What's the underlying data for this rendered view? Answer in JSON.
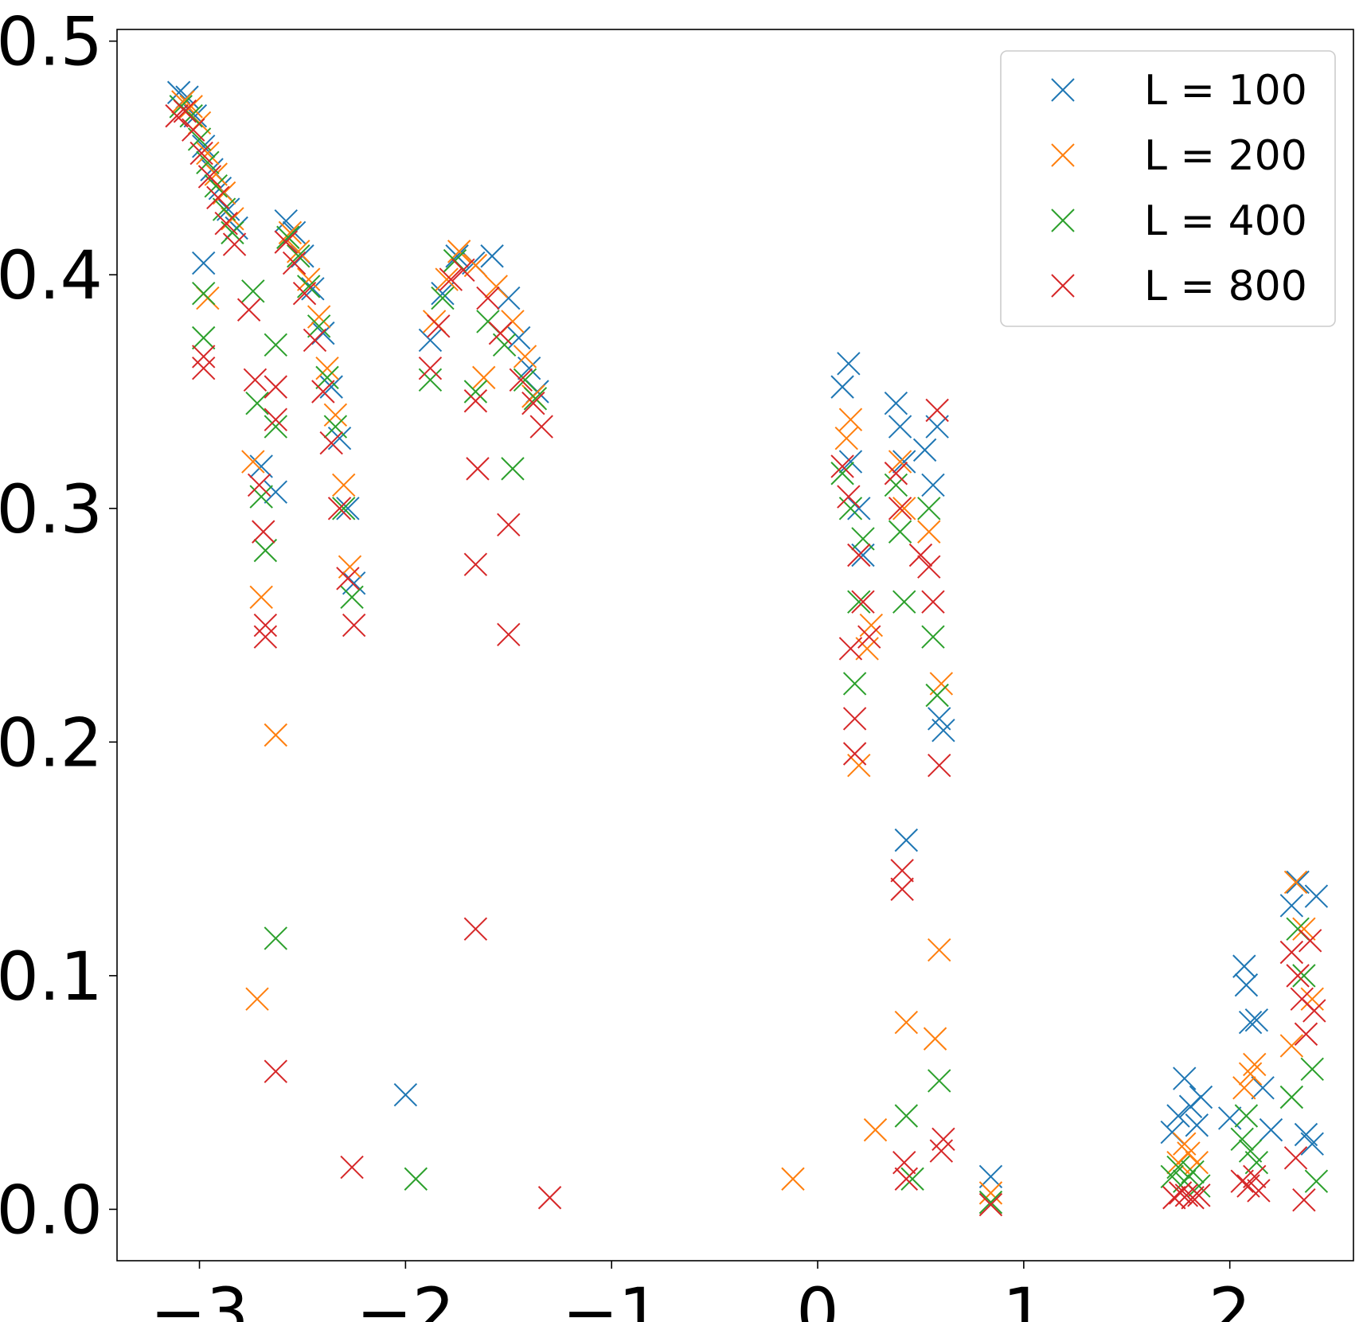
{
  "chart_data": {
    "type": "scatter",
    "title": "",
    "xlabel": "",
    "ylabel": "",
    "xlim": [
      -3.4,
      2.6
    ],
    "ylim": [
      -0.022,
      0.505
    ],
    "xticks": [
      -3,
      -2,
      -1,
      0,
      1,
      2
    ],
    "xtick_labels": [
      "−3",
      "−2",
      "−1",
      "0",
      "1",
      "2"
    ],
    "yticks": [
      0.0,
      0.1,
      0.2,
      0.3,
      0.4,
      0.5
    ],
    "ytick_labels": [
      "0.0",
      "0.1",
      "0.2",
      "0.3",
      "0.4",
      "0.5"
    ],
    "grid": false,
    "legend_position": "top-right",
    "marker": "x",
    "series": [
      {
        "name": "L = 100",
        "color": "#1f77b4",
        "points": [
          [
            -3.1,
            0.478
          ],
          [
            -3.06,
            0.476
          ],
          [
            -3.02,
            0.468
          ],
          [
            -2.98,
            0.455
          ],
          [
            -2.94,
            0.445
          ],
          [
            -2.9,
            0.437
          ],
          [
            -2.86,
            0.428
          ],
          [
            -2.82,
            0.42
          ],
          [
            -2.98,
            0.405
          ],
          [
            -2.7,
            0.318
          ],
          [
            -2.63,
            0.307
          ],
          [
            -2.58,
            0.423
          ],
          [
            -2.54,
            0.418
          ],
          [
            -2.5,
            0.408
          ],
          [
            -2.45,
            0.394
          ],
          [
            -2.4,
            0.375
          ],
          [
            -2.36,
            0.352
          ],
          [
            -2.32,
            0.33
          ],
          [
            -2.28,
            0.3
          ],
          [
            -2.25,
            0.268
          ],
          [
            -1.88,
            0.372
          ],
          [
            -1.82,
            0.392
          ],
          [
            -1.75,
            0.408
          ],
          [
            -1.67,
            0.405
          ],
          [
            -1.58,
            0.408
          ],
          [
            -1.5,
            0.39
          ],
          [
            -1.45,
            0.373
          ],
          [
            -1.4,
            0.36
          ],
          [
            -1.36,
            0.35
          ],
          [
            -2.0,
            0.049
          ],
          [
            0.12,
            0.352
          ],
          [
            0.15,
            0.362
          ],
          [
            0.16,
            0.32
          ],
          [
            0.2,
            0.3
          ],
          [
            0.22,
            0.28
          ],
          [
            0.38,
            0.345
          ],
          [
            0.4,
            0.335
          ],
          [
            0.42,
            0.32
          ],
          [
            0.43,
            0.158
          ],
          [
            0.52,
            0.325
          ],
          [
            0.56,
            0.31
          ],
          [
            0.58,
            0.335
          ],
          [
            0.59,
            0.21
          ],
          [
            0.61,
            0.205
          ],
          [
            0.84,
            0.014
          ],
          [
            1.72,
            0.033
          ],
          [
            1.75,
            0.04
          ],
          [
            1.78,
            0.056
          ],
          [
            1.81,
            0.044
          ],
          [
            1.84,
            0.036
          ],
          [
            1.86,
            0.048
          ],
          [
            2.0,
            0.039
          ],
          [
            2.07,
            0.104
          ],
          [
            2.08,
            0.096
          ],
          [
            2.1,
            0.08
          ],
          [
            2.13,
            0.081
          ],
          [
            2.16,
            0.052
          ],
          [
            2.2,
            0.034
          ],
          [
            2.3,
            0.13
          ],
          [
            2.33,
            0.14
          ],
          [
            2.37,
            0.032
          ],
          [
            2.4,
            0.028
          ],
          [
            2.42,
            0.134
          ]
        ]
      },
      {
        "name": "L = 200",
        "color": "#ff7f0e",
        "points": [
          [
            -3.08,
            0.474
          ],
          [
            -3.04,
            0.472
          ],
          [
            -3.0,
            0.465
          ],
          [
            -2.96,
            0.452
          ],
          [
            -2.92,
            0.443
          ],
          [
            -2.88,
            0.435
          ],
          [
            -2.84,
            0.424
          ],
          [
            -2.96,
            0.39
          ],
          [
            -2.74,
            0.32
          ],
          [
            -2.7,
            0.262
          ],
          [
            -2.72,
            0.09
          ],
          [
            -2.63,
            0.203
          ],
          [
            -2.56,
            0.418
          ],
          [
            -2.52,
            0.41
          ],
          [
            -2.47,
            0.398
          ],
          [
            -2.42,
            0.382
          ],
          [
            -2.38,
            0.36
          ],
          [
            -2.34,
            0.34
          ],
          [
            -2.3,
            0.31
          ],
          [
            -2.27,
            0.275
          ],
          [
            -1.86,
            0.38
          ],
          [
            -1.8,
            0.398
          ],
          [
            -1.74,
            0.41
          ],
          [
            -1.66,
            0.404
          ],
          [
            -1.62,
            0.356
          ],
          [
            -1.56,
            0.395
          ],
          [
            -1.48,
            0.38
          ],
          [
            -1.42,
            0.365
          ],
          [
            -1.38,
            0.348
          ],
          [
            -0.12,
            0.013
          ],
          [
            0.14,
            0.33
          ],
          [
            0.16,
            0.338
          ],
          [
            0.2,
            0.19
          ],
          [
            0.24,
            0.24
          ],
          [
            0.26,
            0.25
          ],
          [
            0.28,
            0.034
          ],
          [
            0.4,
            0.32
          ],
          [
            0.42,
            0.3
          ],
          [
            0.43,
            0.08
          ],
          [
            0.54,
            0.29
          ],
          [
            0.57,
            0.073
          ],
          [
            0.59,
            0.111
          ],
          [
            0.6,
            0.225
          ],
          [
            0.84,
            0.007
          ],
          [
            1.75,
            0.02
          ],
          [
            1.78,
            0.028
          ],
          [
            1.8,
            0.024
          ],
          [
            1.84,
            0.02
          ],
          [
            2.07,
            0.052
          ],
          [
            2.1,
            0.058
          ],
          [
            2.12,
            0.062
          ],
          [
            2.3,
            0.07
          ],
          [
            2.32,
            0.14
          ],
          [
            2.36,
            0.12
          ],
          [
            2.4,
            0.09
          ]
        ]
      },
      {
        "name": "L = 400",
        "color": "#2ca02c",
        "points": [
          [
            -3.09,
            0.472
          ],
          [
            -3.04,
            0.468
          ],
          [
            -3.0,
            0.458
          ],
          [
            -2.96,
            0.448
          ],
          [
            -2.92,
            0.438
          ],
          [
            -2.88,
            0.428
          ],
          [
            -2.84,
            0.418
          ],
          [
            -2.98,
            0.392
          ],
          [
            -2.98,
            0.373
          ],
          [
            -2.74,
            0.393
          ],
          [
            -2.72,
            0.345
          ],
          [
            -2.7,
            0.305
          ],
          [
            -2.68,
            0.282
          ],
          [
            -2.63,
            0.37
          ],
          [
            -2.63,
            0.335
          ],
          [
            -2.63,
            0.116
          ],
          [
            -2.57,
            0.416
          ],
          [
            -2.52,
            0.408
          ],
          [
            -2.47,
            0.395
          ],
          [
            -2.42,
            0.378
          ],
          [
            -2.38,
            0.356
          ],
          [
            -2.34,
            0.335
          ],
          [
            -2.3,
            0.3
          ],
          [
            -2.26,
            0.262
          ],
          [
            -1.95,
            0.013
          ],
          [
            -1.88,
            0.355
          ],
          [
            -1.82,
            0.39
          ],
          [
            -1.76,
            0.406
          ],
          [
            -1.66,
            0.35
          ],
          [
            -1.6,
            0.38
          ],
          [
            -1.52,
            0.37
          ],
          [
            -1.48,
            0.317
          ],
          [
            -1.42,
            0.355
          ],
          [
            -1.37,
            0.347
          ],
          [
            0.12,
            0.315
          ],
          [
            0.16,
            0.3
          ],
          [
            0.18,
            0.225
          ],
          [
            0.2,
            0.26
          ],
          [
            0.22,
            0.287
          ],
          [
            0.38,
            0.31
          ],
          [
            0.4,
            0.29
          ],
          [
            0.42,
            0.26
          ],
          [
            0.43,
            0.04
          ],
          [
            0.46,
            0.013
          ],
          [
            0.54,
            0.3
          ],
          [
            0.56,
            0.245
          ],
          [
            0.58,
            0.22
          ],
          [
            0.59,
            0.055
          ],
          [
            0.84,
            0.003
          ],
          [
            1.72,
            0.014
          ],
          [
            1.75,
            0.018
          ],
          [
            1.78,
            0.012
          ],
          [
            1.82,
            0.016
          ],
          [
            1.85,
            0.01
          ],
          [
            2.06,
            0.03
          ],
          [
            2.08,
            0.04
          ],
          [
            2.1,
            0.025
          ],
          [
            2.13,
            0.02
          ],
          [
            2.3,
            0.048
          ],
          [
            2.33,
            0.12
          ],
          [
            2.36,
            0.1
          ],
          [
            2.4,
            0.06
          ],
          [
            2.42,
            0.012
          ]
        ]
      },
      {
        "name": "L = 800",
        "color": "#d62728",
        "points": [
          [
            -3.11,
            0.468
          ],
          [
            -3.07,
            0.47
          ],
          [
            -3.03,
            0.462
          ],
          [
            -2.99,
            0.452
          ],
          [
            -2.95,
            0.442
          ],
          [
            -2.91,
            0.433
          ],
          [
            -2.87,
            0.422
          ],
          [
            -2.83,
            0.413
          ],
          [
            -2.98,
            0.365
          ],
          [
            -2.98,
            0.36
          ],
          [
            -2.76,
            0.385
          ],
          [
            -2.73,
            0.355
          ],
          [
            -2.71,
            0.31
          ],
          [
            -2.69,
            0.29
          ],
          [
            -2.68,
            0.25
          ],
          [
            -2.68,
            0.245
          ],
          [
            -2.63,
            0.352
          ],
          [
            -2.63,
            0.338
          ],
          [
            -2.63,
            0.059
          ],
          [
            -2.58,
            0.414
          ],
          [
            -2.54,
            0.405
          ],
          [
            -2.49,
            0.392
          ],
          [
            -2.44,
            0.372
          ],
          [
            -2.4,
            0.35
          ],
          [
            -2.36,
            0.328
          ],
          [
            -2.32,
            0.3
          ],
          [
            -2.28,
            0.27
          ],
          [
            -2.25,
            0.25
          ],
          [
            -2.26,
            0.018
          ],
          [
            -1.88,
            0.36
          ],
          [
            -1.84,
            0.378
          ],
          [
            -1.78,
            0.398
          ],
          [
            -1.72,
            0.402
          ],
          [
            -1.66,
            0.346
          ],
          [
            -1.65,
            0.317
          ],
          [
            -1.66,
            0.276
          ],
          [
            -1.66,
            0.12
          ],
          [
            -1.6,
            0.39
          ],
          [
            -1.54,
            0.375
          ],
          [
            -1.5,
            0.293
          ],
          [
            -1.5,
            0.246
          ],
          [
            -1.44,
            0.355
          ],
          [
            -1.38,
            0.345
          ],
          [
            -1.34,
            0.335
          ],
          [
            -1.3,
            0.005
          ],
          [
            0.12,
            0.318
          ],
          [
            0.15,
            0.305
          ],
          [
            0.16,
            0.24
          ],
          [
            0.18,
            0.21
          ],
          [
            0.18,
            0.195
          ],
          [
            0.2,
            0.28
          ],
          [
            0.22,
            0.26
          ],
          [
            0.25,
            0.245
          ],
          [
            0.38,
            0.315
          ],
          [
            0.4,
            0.3
          ],
          [
            0.41,
            0.145
          ],
          [
            0.41,
            0.137
          ],
          [
            0.42,
            0.02
          ],
          [
            0.43,
            0.013
          ],
          [
            0.5,
            0.28
          ],
          [
            0.54,
            0.275
          ],
          [
            0.56,
            0.26
          ],
          [
            0.58,
            0.342
          ],
          [
            0.59,
            0.19
          ],
          [
            0.6,
            0.025
          ],
          [
            0.61,
            0.03
          ],
          [
            0.84,
            0.002
          ],
          [
            1.73,
            0.005
          ],
          [
            1.76,
            0.007
          ],
          [
            1.79,
            0.006
          ],
          [
            1.82,
            0.005
          ],
          [
            1.85,
            0.006
          ],
          [
            2.06,
            0.012
          ],
          [
            2.09,
            0.01
          ],
          [
            2.12,
            0.014
          ],
          [
            2.14,
            0.008
          ],
          [
            2.3,
            0.11
          ],
          [
            2.33,
            0.1
          ],
          [
            2.35,
            0.09
          ],
          [
            2.37,
            0.075
          ],
          [
            2.39,
            0.115
          ],
          [
            2.41,
            0.085
          ],
          [
            2.32,
            0.022
          ],
          [
            2.36,
            0.004
          ]
        ]
      }
    ]
  }
}
